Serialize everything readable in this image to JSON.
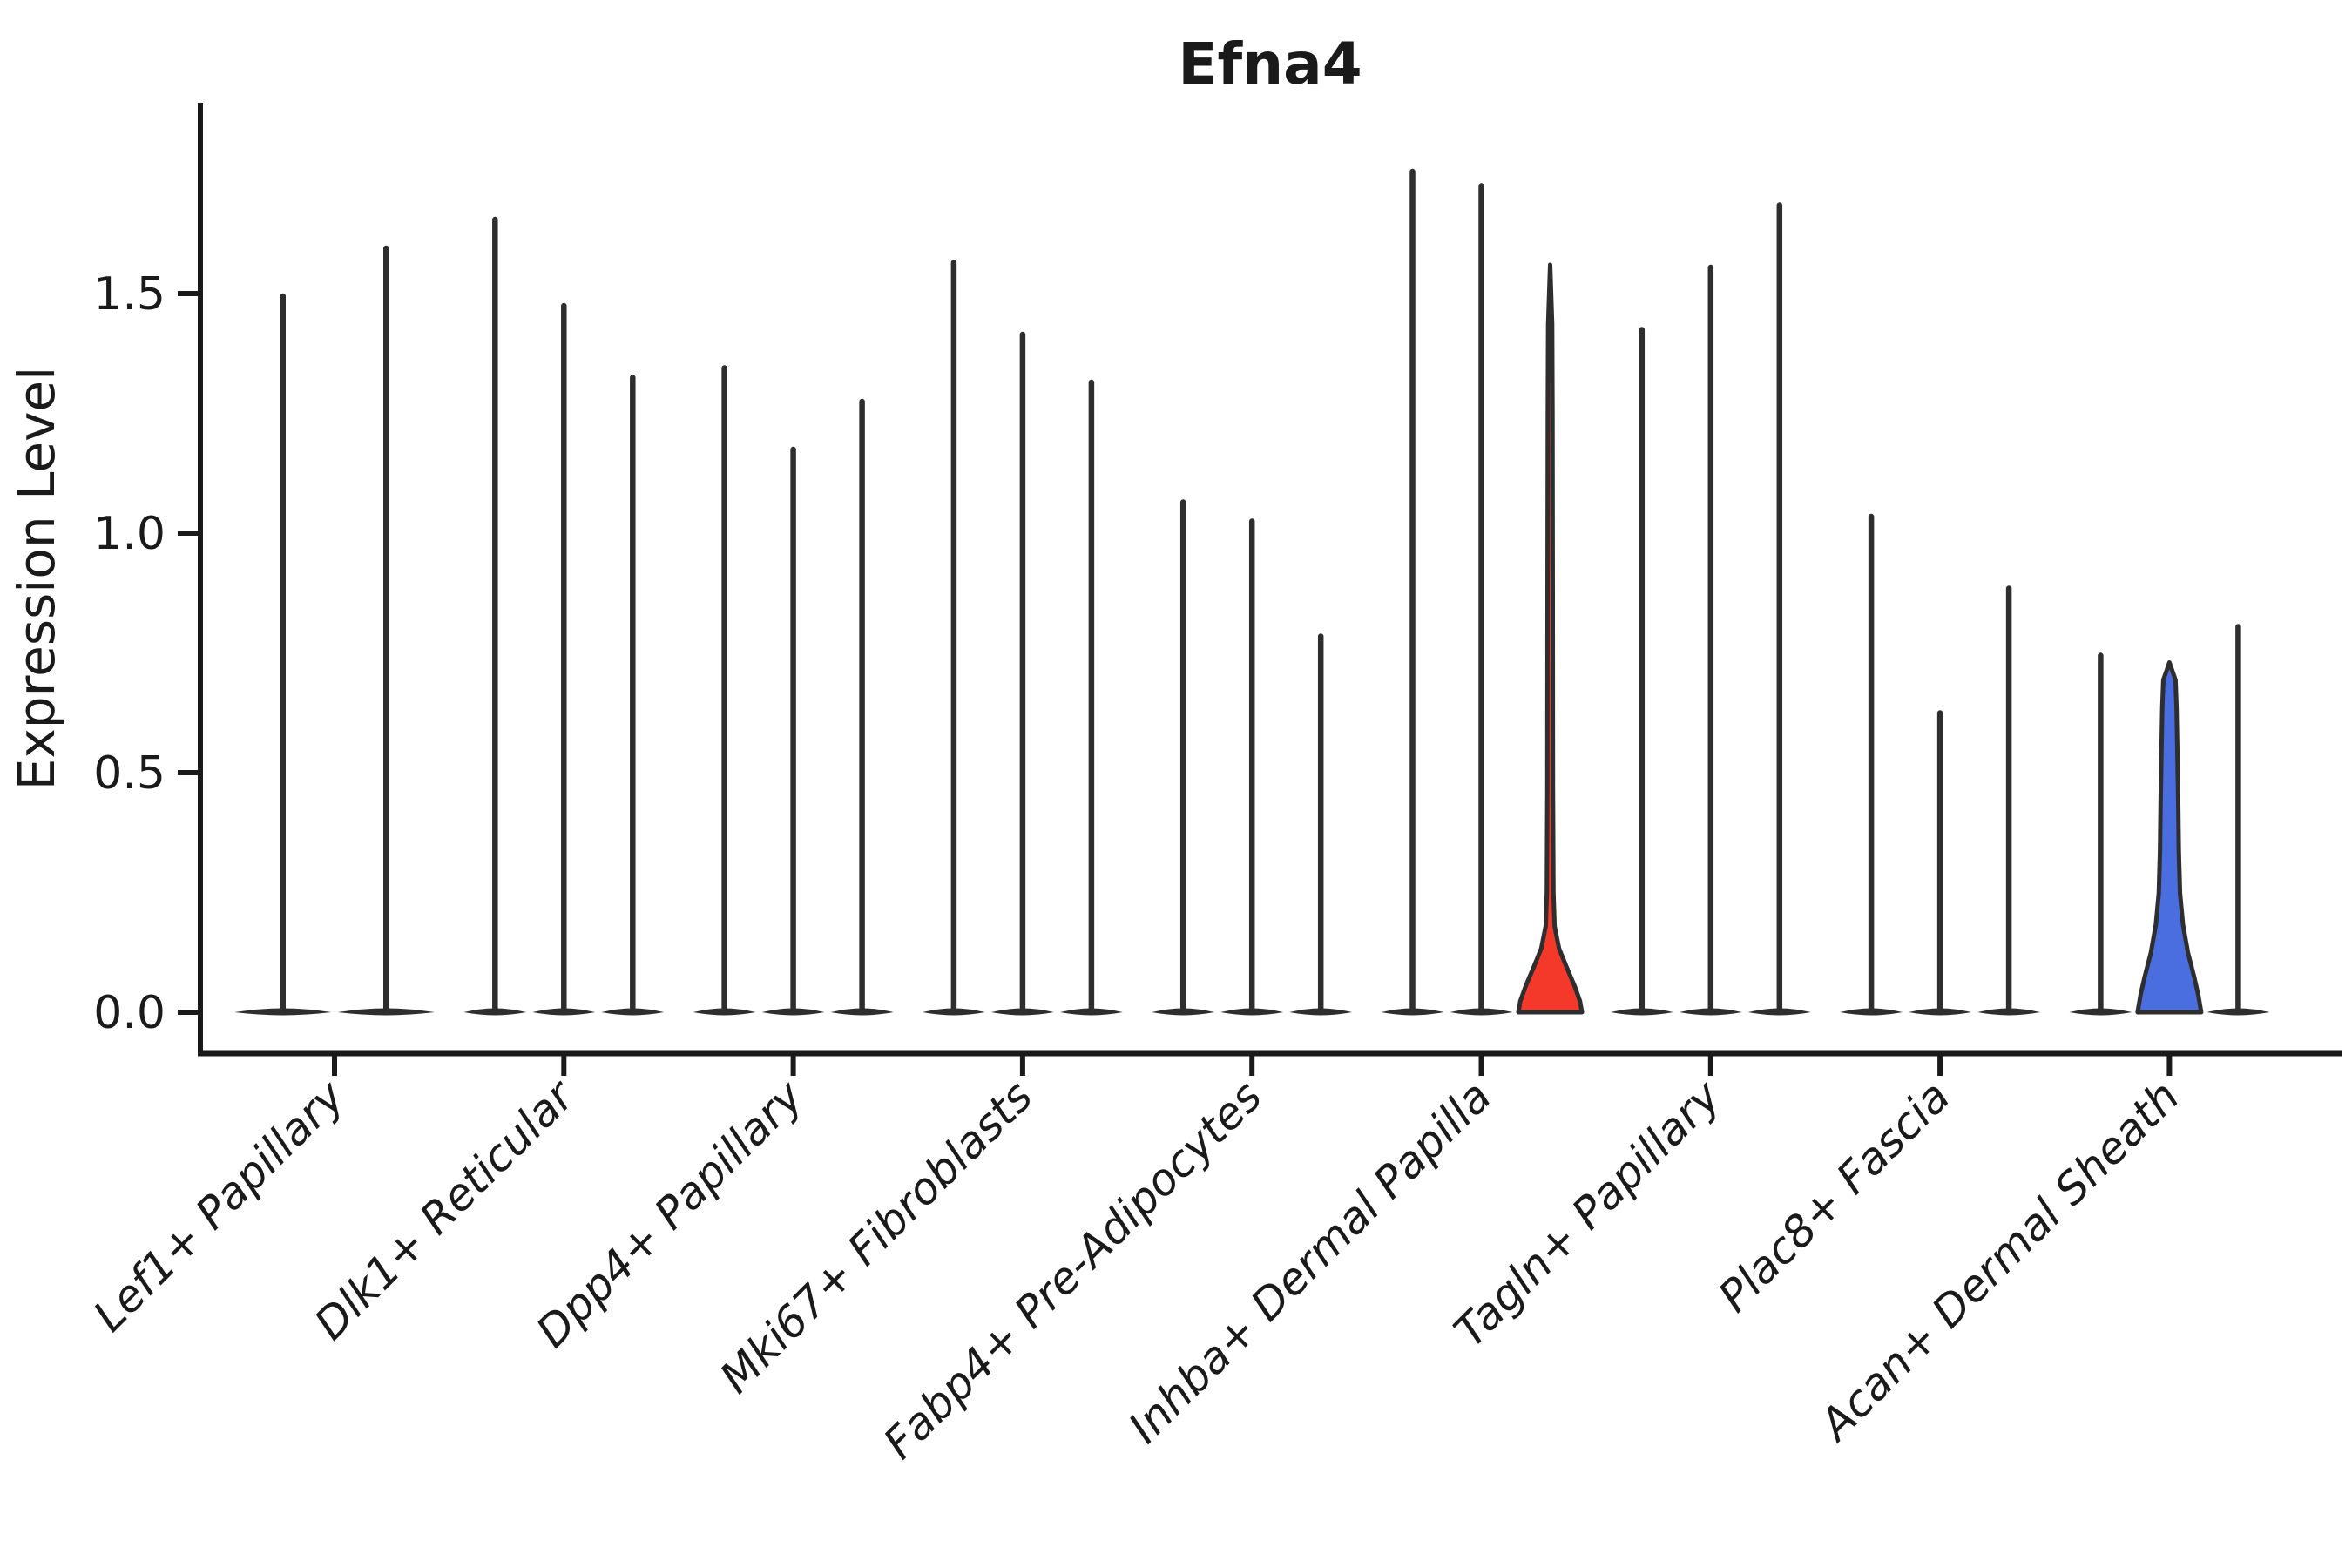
{
  "title": "Efna4",
  "y_axis": {
    "label": "Expression Level",
    "tick_labels": [
      "0.0",
      "0.5",
      "1.0",
      "1.5"
    ],
    "tick_values": [
      0.0,
      0.5,
      1.0,
      1.5
    ]
  },
  "chart_data": {
    "type": "violin",
    "title": "Efna4",
    "xlabel": "",
    "ylabel": "Expression Level",
    "ylim": [
      0,
      1.85
    ],
    "yticks": [
      0.0,
      0.5,
      1.0,
      1.5
    ],
    "grid": false,
    "legend": "none",
    "categories": [
      "Lef1+ Papillary",
      "Dlk1+ Reticular",
      "Dpp4+ Papillary",
      "Mki67+ Fibroblasts",
      "Fabp4+ Pre-Adipocytes",
      "Inhba+ Dermal Papilla",
      "Tagln+ Papillary",
      "Plac8+ Fascia",
      "Acan+ Dermal Sheath"
    ],
    "groups": [
      {
        "category": "Lef1+ Papillary",
        "violins": [
          {
            "max": 1.5
          },
          {
            "max": 1.6
          }
        ]
      },
      {
        "category": "Dlk1+ Reticular",
        "violins": [
          {
            "max": 1.66
          },
          {
            "max": 1.48
          },
          {
            "max": 1.33
          }
        ]
      },
      {
        "category": "Dpp4+ Papillary",
        "violins": [
          {
            "max": 1.35
          },
          {
            "max": 1.18
          },
          {
            "max": 1.28
          }
        ]
      },
      {
        "category": "Mki67+ Fibroblasts",
        "violins": [
          {
            "max": 1.57
          },
          {
            "max": 1.42
          },
          {
            "max": 1.32
          }
        ]
      },
      {
        "category": "Fabp4+ Pre-Adipocytes",
        "violins": [
          {
            "max": 1.07
          },
          {
            "max": 1.03
          },
          {
            "max": 0.79
          }
        ]
      },
      {
        "category": "Inhba+ Dermal Papilla",
        "violins": [
          {
            "max": 1.76
          },
          {
            "max": 1.73
          },
          {
            "max": 1.56,
            "shape": "bell",
            "fill": "#f4392b"
          }
        ]
      },
      {
        "category": "Tagln+ Papillary",
        "violins": [
          {
            "max": 1.43
          },
          {
            "max": 1.56
          },
          {
            "max": 1.69
          }
        ]
      },
      {
        "category": "Plac8+ Fascia",
        "violins": [
          {
            "max": 1.04
          },
          {
            "max": 0.63
          },
          {
            "max": 0.89
          }
        ]
      },
      {
        "category": "Acan+ Dermal Sheath",
        "violins": [
          {
            "max": 0.75
          },
          {
            "max": 0.73,
            "shape": "column",
            "fill": "#4a6ee0"
          },
          {
            "max": 0.81
          }
        ]
      }
    ],
    "profiles": {
      "bell": [
        [
          0,
          0.96
        ],
        [
          0.015,
          0.9
        ],
        [
          0.035,
          0.74
        ],
        [
          0.06,
          0.5
        ],
        [
          0.085,
          0.27
        ],
        [
          0.115,
          0.135
        ],
        [
          0.16,
          0.1
        ],
        [
          0.3,
          0.085
        ],
        [
          0.55,
          0.078
        ],
        [
          0.8,
          0.07
        ],
        [
          0.92,
          0.06
        ],
        [
          1,
          0
        ]
      ],
      "column": [
        [
          0,
          0.96
        ],
        [
          0.05,
          0.87
        ],
        [
          0.1,
          0.75
        ],
        [
          0.17,
          0.56
        ],
        [
          0.25,
          0.41
        ],
        [
          0.34,
          0.32
        ],
        [
          0.46,
          0.285
        ],
        [
          0.6,
          0.265
        ],
        [
          0.75,
          0.24
        ],
        [
          0.87,
          0.215
        ],
        [
          0.95,
          0.185
        ],
        [
          1,
          0
        ]
      ]
    },
    "colors": {
      "outline": "#2e2e2e",
      "axis": "#1a1a1a",
      "highlight_red": "#f4392b",
      "highlight_blue": "#4a6ee0",
      "background": "#ffffff"
    }
  }
}
